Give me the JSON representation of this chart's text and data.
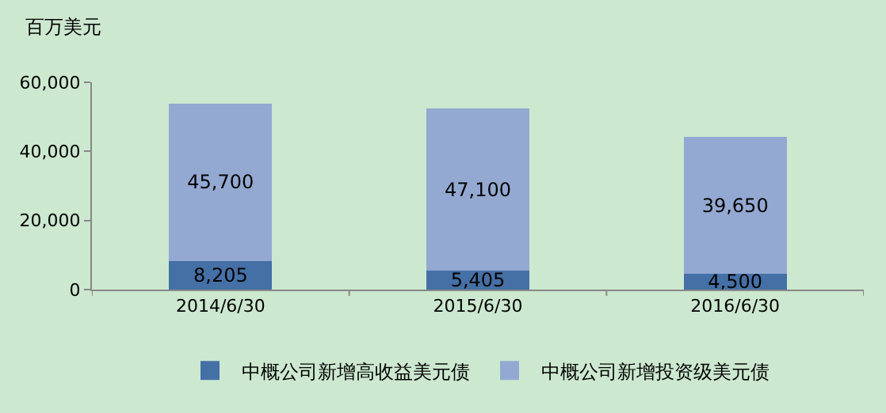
{
  "chart_data": {
    "type": "bar",
    "stacked": true,
    "ylabel": "百万美元",
    "categories": [
      "2014/6/30",
      "2015/6/30",
      "2016/6/30"
    ],
    "series": [
      {
        "name": "中概公司新增高收益美元债",
        "color": "#4470a6",
        "values": [
          8205,
          5405,
          4500
        ],
        "value_labels": [
          "8,205",
          "5,405",
          "4,500"
        ]
      },
      {
        "name": "中概公司新增投资级美元债",
        "color": "#93a9d1",
        "values": [
          45700,
          47100,
          39650
        ],
        "value_labels": [
          "45,700",
          "47,100",
          "39,650"
        ]
      }
    ],
    "ylim": [
      0,
      60000
    ],
    "yticks": [
      0,
      {
        "value": 20000,
        "label": "20,000"
      },
      {
        "value": 40000,
        "label": "40,000"
      },
      {
        "value": 60000,
        "label": "60,000"
      }
    ],
    "grid": false,
    "legend": "bottom"
  }
}
